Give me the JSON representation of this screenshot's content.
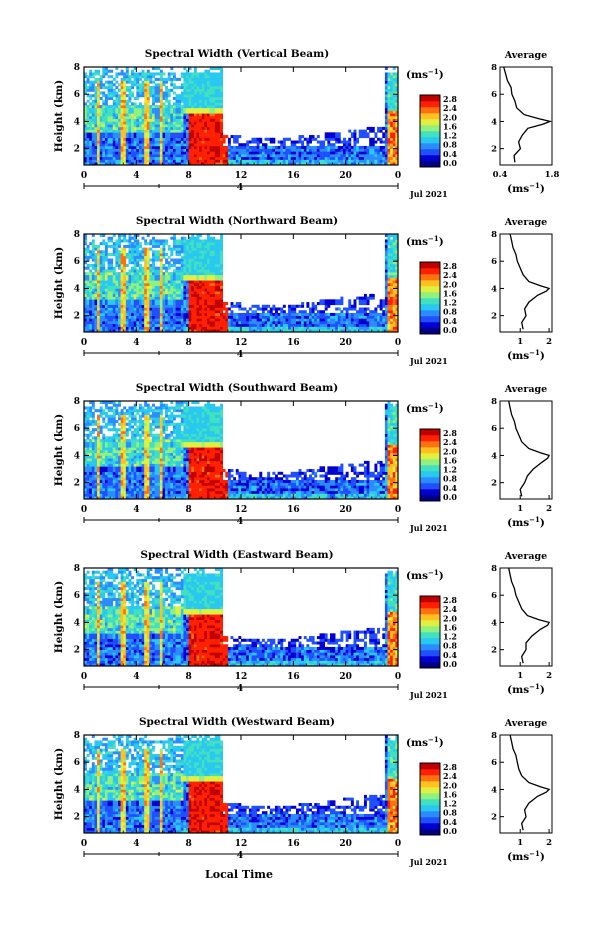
{
  "figure": {
    "xlabel": "Local Time",
    "date_label": "Jul 2021",
    "day_label": "4",
    "height_ylabel": "Height (km)",
    "avg_title": "Average",
    "unit_label": "(ms",
    "unit_exp": "−1",
    "unit_close": ")",
    "colormap": [
      "#ffffff",
      "#000080",
      "#0000d0",
      "#1f4fff",
      "#2a8cff",
      "#28c8f0",
      "#40e0c0",
      "#90f080",
      "#e0f040",
      "#ffc020",
      "#ff7010",
      "#ff2000",
      "#c00000"
    ]
  },
  "chart_data": [
    {
      "type": "heatmap",
      "title": "Spectral Width (Vertical Beam)",
      "xlabel": "Local Time",
      "ylabel": "Height (km)",
      "xlim": [
        0,
        24
      ],
      "ylim": [
        0.8,
        8
      ],
      "xticks": [
        "0",
        "4",
        "8",
        "12",
        "16",
        "20",
        "0"
      ],
      "yticks": [
        "2",
        "4",
        "6",
        "8"
      ],
      "colorbar": {
        "label": "(ms⁻¹)",
        "ticks": [
          "0.0",
          "0.4",
          "0.8",
          "1.2",
          "1.6",
          "2.0",
          "2.4",
          "2.8"
        ],
        "range": [
          0,
          2.8
        ]
      },
      "average_profile": {
        "title": "Average",
        "xlabel": "(ms⁻¹)",
        "xticks": [
          "0.4",
          "1.8"
        ],
        "xlim": [
          0.4,
          1.8
        ],
        "yticks": [
          "2",
          "4",
          "6",
          "8"
        ],
        "ylim": [
          0.8,
          8
        ],
        "height": [
          1.0,
          1.5,
          2.0,
          2.5,
          3.0,
          3.5,
          3.8,
          4.0,
          4.2,
          4.5,
          5.0,
          5.5,
          6.0,
          6.5,
          7.0,
          7.5,
          8.0
        ],
        "value": [
          0.8,
          0.78,
          0.95,
          0.9,
          1.0,
          1.15,
          1.55,
          1.75,
          1.45,
          1.05,
          0.85,
          0.8,
          0.72,
          0.7,
          0.6,
          0.55,
          0.5
        ]
      }
    },
    {
      "type": "heatmap",
      "title": "Spectral Width (Northward Beam)",
      "xlabel": "Local Time",
      "ylabel": "Height (km)",
      "xlim": [
        0,
        24
      ],
      "ylim": [
        0.8,
        8
      ],
      "xticks": [
        "0",
        "4",
        "8",
        "12",
        "16",
        "20",
        "0"
      ],
      "yticks": [
        "2",
        "4",
        "6",
        "8"
      ],
      "colorbar": {
        "label": "(ms⁻¹)",
        "ticks": [
          "0.0",
          "0.4",
          "0.8",
          "1.2",
          "1.6",
          "2.0",
          "2.4",
          "2.8"
        ],
        "range": [
          0,
          2.8
        ]
      },
      "average_profile": {
        "title": "Average",
        "xlabel": "(ms⁻¹)",
        "xticks": [
          "1",
          "2"
        ],
        "xlim": [
          0.3,
          2.1
        ],
        "yticks": [
          "2",
          "4",
          "6",
          "8"
        ],
        "ylim": [
          0.8,
          8
        ],
        "height": [
          1.0,
          1.5,
          2.0,
          2.5,
          3.0,
          3.5,
          3.8,
          4.0,
          4.2,
          4.5,
          5.0,
          5.5,
          6.0,
          6.5,
          7.0,
          7.5,
          8.0
        ],
        "value": [
          1.1,
          1.05,
          1.2,
          1.15,
          1.3,
          1.6,
          1.9,
          2.0,
          1.7,
          1.3,
          1.1,
          1.0,
          0.9,
          0.85,
          0.75,
          0.7,
          0.65
        ]
      }
    },
    {
      "type": "heatmap",
      "title": "Spectral Width (Southward Beam)",
      "xlabel": "Local Time",
      "ylabel": "Height (km)",
      "xlim": [
        0,
        24
      ],
      "ylim": [
        0.8,
        8
      ],
      "xticks": [
        "0",
        "4",
        "8",
        "12",
        "16",
        "20",
        "0"
      ],
      "yticks": [
        "2",
        "4",
        "6",
        "8"
      ],
      "colorbar": {
        "label": "(ms⁻¹)",
        "ticks": [
          "0.0",
          "0.4",
          "0.8",
          "1.2",
          "1.6",
          "2.0",
          "2.4",
          "2.8"
        ],
        "range": [
          0,
          2.8
        ]
      },
      "average_profile": {
        "title": "Average",
        "xlabel": "(ms⁻¹)",
        "xticks": [
          "1",
          "2"
        ],
        "xlim": [
          0.3,
          2.1
        ],
        "yticks": [
          "2",
          "4",
          "6",
          "8"
        ],
        "ylim": [
          0.8,
          8
        ],
        "height": [
          1.0,
          1.5,
          2.0,
          2.5,
          3.0,
          3.5,
          3.8,
          4.0,
          4.2,
          4.5,
          5.0,
          5.5,
          6.0,
          6.5,
          7.0,
          7.5,
          8.0
        ],
        "value": [
          1.05,
          1.0,
          1.15,
          1.25,
          1.45,
          1.75,
          1.95,
          2.0,
          1.7,
          1.3,
          1.05,
          0.95,
          0.85,
          0.8,
          0.7,
          0.65,
          0.6
        ]
      }
    },
    {
      "type": "heatmap",
      "title": "Spectral Width (Eastward Beam)",
      "xlabel": "Local Time",
      "ylabel": "Height (km)",
      "xlim": [
        0,
        24
      ],
      "ylim": [
        0.8,
        8
      ],
      "xticks": [
        "0",
        "4",
        "8",
        "12",
        "16",
        "20",
        "0"
      ],
      "yticks": [
        "2",
        "4",
        "6",
        "8"
      ],
      "colorbar": {
        "label": "(ms⁻¹)",
        "ticks": [
          "0.0",
          "0.4",
          "0.8",
          "1.2",
          "1.6",
          "2.0",
          "2.4",
          "2.8"
        ],
        "range": [
          0,
          2.8
        ]
      },
      "average_profile": {
        "title": "Average",
        "xlabel": "(ms⁻¹)",
        "xticks": [
          "1",
          "2"
        ],
        "xlim": [
          0.3,
          2.1
        ],
        "yticks": [
          "2",
          "4",
          "6",
          "8"
        ],
        "ylim": [
          0.8,
          8
        ],
        "height": [
          1.0,
          1.5,
          2.0,
          2.5,
          3.0,
          3.5,
          3.8,
          4.0,
          4.2,
          4.5,
          5.0,
          5.5,
          6.0,
          6.5,
          7.0,
          7.5,
          8.0
        ],
        "value": [
          1.1,
          1.05,
          1.2,
          1.2,
          1.4,
          1.7,
          1.95,
          2.0,
          1.65,
          1.25,
          1.05,
          0.95,
          0.85,
          0.8,
          0.7,
          0.65,
          0.6
        ]
      }
    },
    {
      "type": "heatmap",
      "title": "Spectral Width (Westward Beam)",
      "xlabel": "Local Time",
      "ylabel": "Height (km)",
      "xlim": [
        0,
        24
      ],
      "ylim": [
        0.8,
        8
      ],
      "xticks": [
        "0",
        "4",
        "8",
        "12",
        "16",
        "20",
        "0"
      ],
      "yticks": [
        "2",
        "4",
        "6",
        "8"
      ],
      "colorbar": {
        "label": "(ms⁻¹)",
        "ticks": [
          "0.0",
          "0.4",
          "0.8",
          "1.2",
          "1.6",
          "2.0",
          "2.4",
          "2.8"
        ],
        "range": [
          0,
          2.8
        ]
      },
      "average_profile": {
        "title": "Average",
        "xlabel": "(ms⁻¹)",
        "xticks": [
          "1",
          "2"
        ],
        "xlim": [
          0.3,
          2.1
        ],
        "yticks": [
          "2",
          "4",
          "6",
          "8"
        ],
        "ylim": [
          0.8,
          8
        ],
        "height": [
          1.0,
          1.5,
          2.0,
          2.5,
          3.0,
          3.5,
          3.8,
          4.0,
          4.2,
          4.5,
          5.0,
          5.5,
          6.0,
          6.5,
          7.0,
          7.5,
          8.0
        ],
        "value": [
          1.1,
          1.05,
          1.2,
          1.15,
          1.3,
          1.6,
          1.9,
          2.0,
          1.7,
          1.3,
          1.05,
          0.95,
          0.9,
          0.85,
          0.75,
          0.7,
          0.65
        ]
      }
    }
  ]
}
